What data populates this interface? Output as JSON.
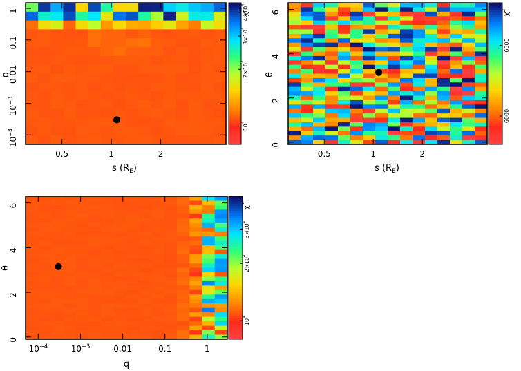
{
  "chart_data": [
    {
      "type": "heatmap",
      "id": "s-q",
      "xlabel": "s (R",
      "xlabel_sub": "E",
      "xlabel_close": ")",
      "ylabel": "q",
      "x_scale": "log",
      "y_scale": "log",
      "xlim": [
        0.3,
        5.0
      ],
      "ylim": [
        5e-05,
        1.5
      ],
      "x_ticks": [
        {
          "v": 0.5,
          "label": "0.5"
        },
        {
          "v": 1,
          "label": "1"
        },
        {
          "v": 2,
          "label": "2"
        }
      ],
      "y_ticks": [
        {
          "v": 1,
          "label": "1",
          "sup": ""
        },
        {
          "v": 0.1,
          "label": "0.1",
          "sup": ""
        },
        {
          "v": 0.01,
          "label": "0.01",
          "sup": ""
        },
        {
          "v": 0.001,
          "label": "10",
          "sup": "−3"
        },
        {
          "v": 0.0001,
          "label": "10",
          "sup": "−4"
        }
      ],
      "best_fit": {
        "x": 1.08,
        "y": 0.0003
      },
      "colorbar": {
        "label": "χ",
        "label_sup": "2",
        "range": [
          8000,
          45000
        ],
        "ticks": [
          {
            "v": 10000,
            "label": "10",
            "sup": "4"
          },
          {
            "v": 20000,
            "label": "2×10",
            "sup": "4"
          },
          {
            "v": 30000,
            "label": "3×10",
            "sup": "4"
          },
          {
            "v": 40000,
            "label": "4×10",
            "sup": "4"
          }
        ]
      },
      "grid": {
        "nx": 16,
        "ny": 16,
        "base": 10800,
        "note": "chi2 high near q~1, low elsewhere"
      }
    },
    {
      "type": "heatmap",
      "id": "s-theta",
      "xlabel": "s (R",
      "xlabel_sub": "E",
      "xlabel_close": ")",
      "ylabel": "θ",
      "x_scale": "log",
      "y_scale": "linear",
      "xlim": [
        0.3,
        5.0
      ],
      "ylim": [
        -0.1,
        6.3
      ],
      "x_ticks": [
        {
          "v": 0.5,
          "label": "0.5"
        },
        {
          "v": 1,
          "label": "1"
        },
        {
          "v": 2,
          "label": "2"
        }
      ],
      "y_ticks": [
        {
          "v": 0,
          "label": "0",
          "sup": ""
        },
        {
          "v": 2,
          "label": "2",
          "sup": ""
        },
        {
          "v": 4,
          "label": "4",
          "sup": ""
        },
        {
          "v": 6,
          "label": "6",
          "sup": ""
        }
      ],
      "best_fit": {
        "x": 1.08,
        "y": 3.15
      },
      "colorbar": {
        "label": "χ",
        "label_sup": "2",
        "range": [
          5800,
          6800
        ],
        "ticks": [
          {
            "v": 6000,
            "label": "6000",
            "sup": ""
          },
          {
            "v": 6500,
            "label": "6500",
            "sup": ""
          }
        ]
      },
      "grid": {
        "nx": 16,
        "ny": 32,
        "note": "chi2 noisy across full range"
      }
    },
    {
      "type": "heatmap",
      "id": "q-theta",
      "xlabel": "q",
      "xlabel_sub": "",
      "xlabel_close": "",
      "ylabel": "θ",
      "x_scale": "log",
      "y_scale": "linear",
      "xlim": [
        5e-05,
        3.0
      ],
      "ylim": [
        -0.1,
        6.3
      ],
      "x_ticks": [
        {
          "v": 0.0001,
          "label": "10",
          "sup": "−4"
        },
        {
          "v": 0.001,
          "label": "10",
          "sup": "−3"
        },
        {
          "v": 0.01,
          "label": "0.01",
          "sup": ""
        },
        {
          "v": 0.1,
          "label": "0.1",
          "sup": ""
        },
        {
          "v": 1,
          "label": "1",
          "sup": ""
        }
      ],
      "y_ticks": [
        {
          "v": 0,
          "label": "0",
          "sup": ""
        },
        {
          "v": 2,
          "label": "2",
          "sup": ""
        },
        {
          "v": 4,
          "label": "4",
          "sup": ""
        },
        {
          "v": 6,
          "label": "6",
          "sup": ""
        }
      ],
      "best_fit": {
        "x": 0.0003,
        "y": 3.15
      },
      "colorbar": {
        "label": "χ",
        "label_sup": "2",
        "range": [
          8000,
          45000
        ],
        "ticks": [
          {
            "v": 10000,
            "label": "10",
            "sup": "4"
          },
          {
            "v": 20000,
            "label": "2×10",
            "sup": "4"
          },
          {
            "v": 30000,
            "label": "3×10",
            "sup": "4"
          }
        ]
      },
      "grid": {
        "nx": 16,
        "ny": 32,
        "base": 10800,
        "note": "chi2 high for q>0.1"
      }
    }
  ]
}
